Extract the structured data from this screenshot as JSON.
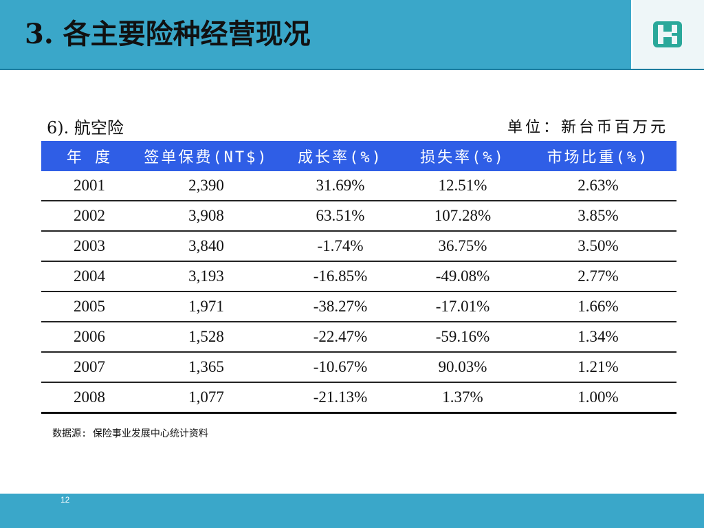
{
  "header": {
    "title": "3. 各主要险种经营现况"
  },
  "section": {
    "subtitle": "6). 航空险",
    "unit": "单位：新台币百万元"
  },
  "table": {
    "columns": [
      "年  度",
      "签单保费(NT$)",
      "成长率(%)",
      "损失率(%)",
      "市场比重(%)"
    ],
    "rows": [
      [
        "2001",
        "2,390",
        "31.69%",
        "12.51%",
        "2.63%"
      ],
      [
        "2002",
        "3,908",
        "63.51%",
        "107.28%",
        "3.85%"
      ],
      [
        "2003",
        "3,840",
        "-1.74%",
        "36.75%",
        "3.50%"
      ],
      [
        "2004",
        "3,193",
        "-16.85%",
        "-49.08%",
        "2.77%"
      ],
      [
        "2005",
        "1,971",
        "-38.27%",
        "-17.01%",
        "1.66%"
      ],
      [
        "2006",
        "1,528",
        "-22.47%",
        "-59.16%",
        "1.34%"
      ],
      [
        "2007",
        "1,365",
        "-10.67%",
        "90.03%",
        "1.21%"
      ],
      [
        "2008",
        "1,077",
        "-21.13%",
        "1.37%",
        "1.00%"
      ]
    ]
  },
  "source": "数据源: 保险事业发展中心统计资料",
  "footer": {
    "page_number": "12"
  },
  "colors": {
    "header_bg": "#3aa7c9",
    "table_header_bg": "#2f5ee6",
    "logo": "#2aa89a"
  },
  "icons": {
    "logo": "company-logo-icon"
  }
}
